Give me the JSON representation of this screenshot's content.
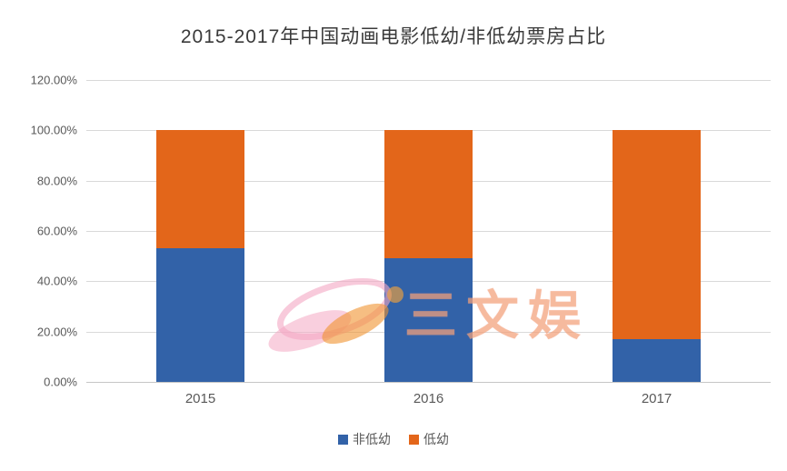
{
  "chart_data": {
    "type": "bar",
    "stacked": true,
    "title": "2015-2017年中国动画电影低幼/非低幼票房占比",
    "categories": [
      "2015",
      "2016",
      "2017"
    ],
    "series": [
      {
        "name": "非低幼",
        "color": "#3262A8",
        "values": [
          53,
          49,
          17
        ]
      },
      {
        "name": "低幼",
        "color": "#E3661A",
        "values": [
          47,
          51,
          83
        ]
      }
    ],
    "ylim": [
      0,
      120
    ],
    "y_ticks": [
      "0.00%",
      "20.00%",
      "40.00%",
      "60.00%",
      "80.00%",
      "100.00%",
      "120.00%"
    ],
    "grid": true,
    "legend_position": "bottom"
  },
  "watermark": {
    "text": "三文娱"
  },
  "colors": {
    "gridline": "#d9d9d9",
    "axis_text": "#595959",
    "title_text": "#3a3a3a",
    "watermark_pink": "#F4A7C3",
    "watermark_orange": "#F0932F"
  }
}
